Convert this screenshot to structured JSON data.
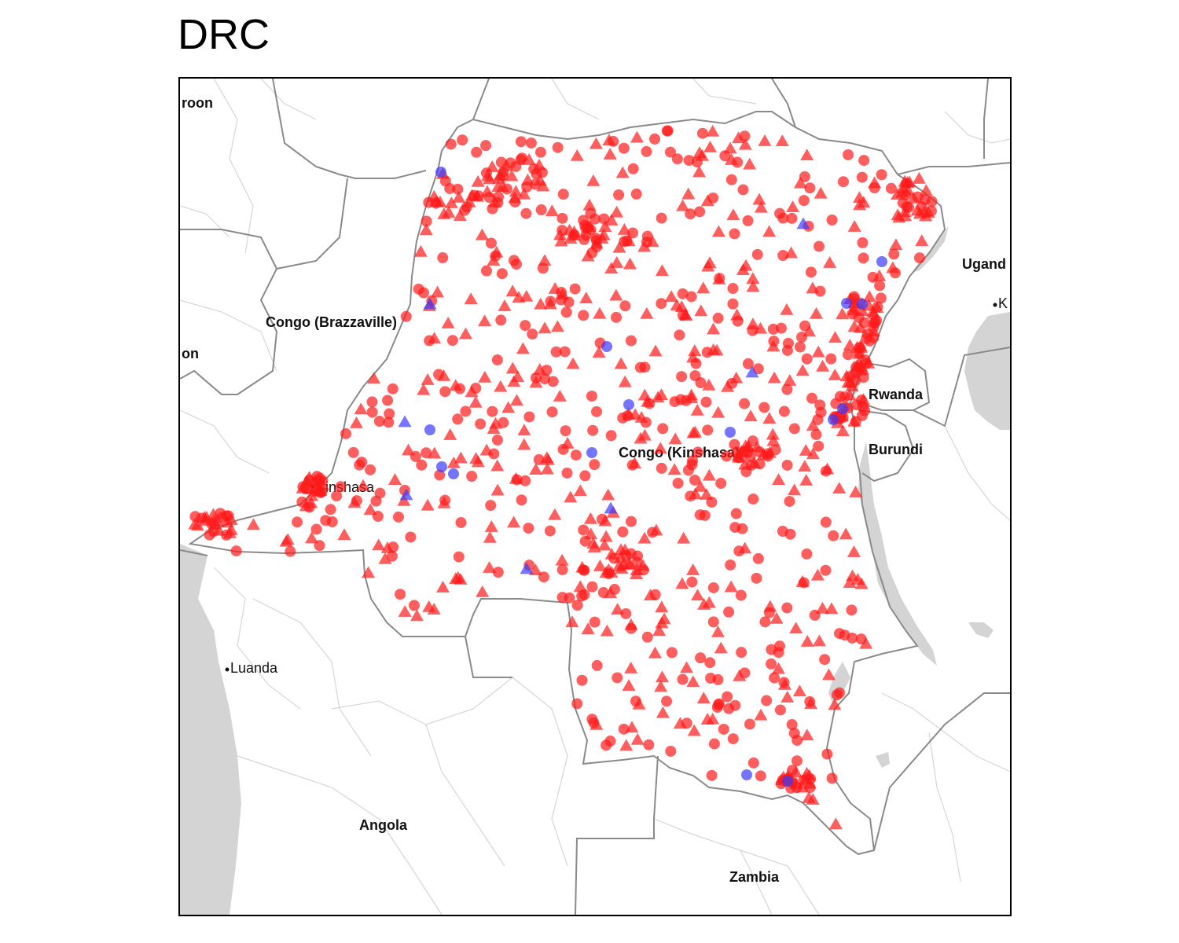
{
  "title": "DRC",
  "map": {
    "country_labels": {
      "cameroon": "roon",
      "gabon": "on",
      "congo_brazzaville": "Congo (Brazzaville)",
      "congo_kinshasa": "Congo (Kinshasa)",
      "uganda": "Ugand",
      "rwanda": "Rwanda",
      "burundi": "Burundi",
      "angola": "Angola",
      "zambia": "Zambia"
    },
    "city_labels": {
      "kinshasa": "Kinshasa",
      "luanda": "Luanda",
      "kampala": "K"
    },
    "colors": {
      "red_marker": "#ff1a1a",
      "blue_marker": "#3b3bff",
      "water": "#d4d4d4",
      "border": "#8a8a8a",
      "admin_border": "#d0d0d0"
    },
    "marker_shapes": [
      "circle",
      "triangle"
    ],
    "marker_colors": [
      "red",
      "blue"
    ]
  }
}
